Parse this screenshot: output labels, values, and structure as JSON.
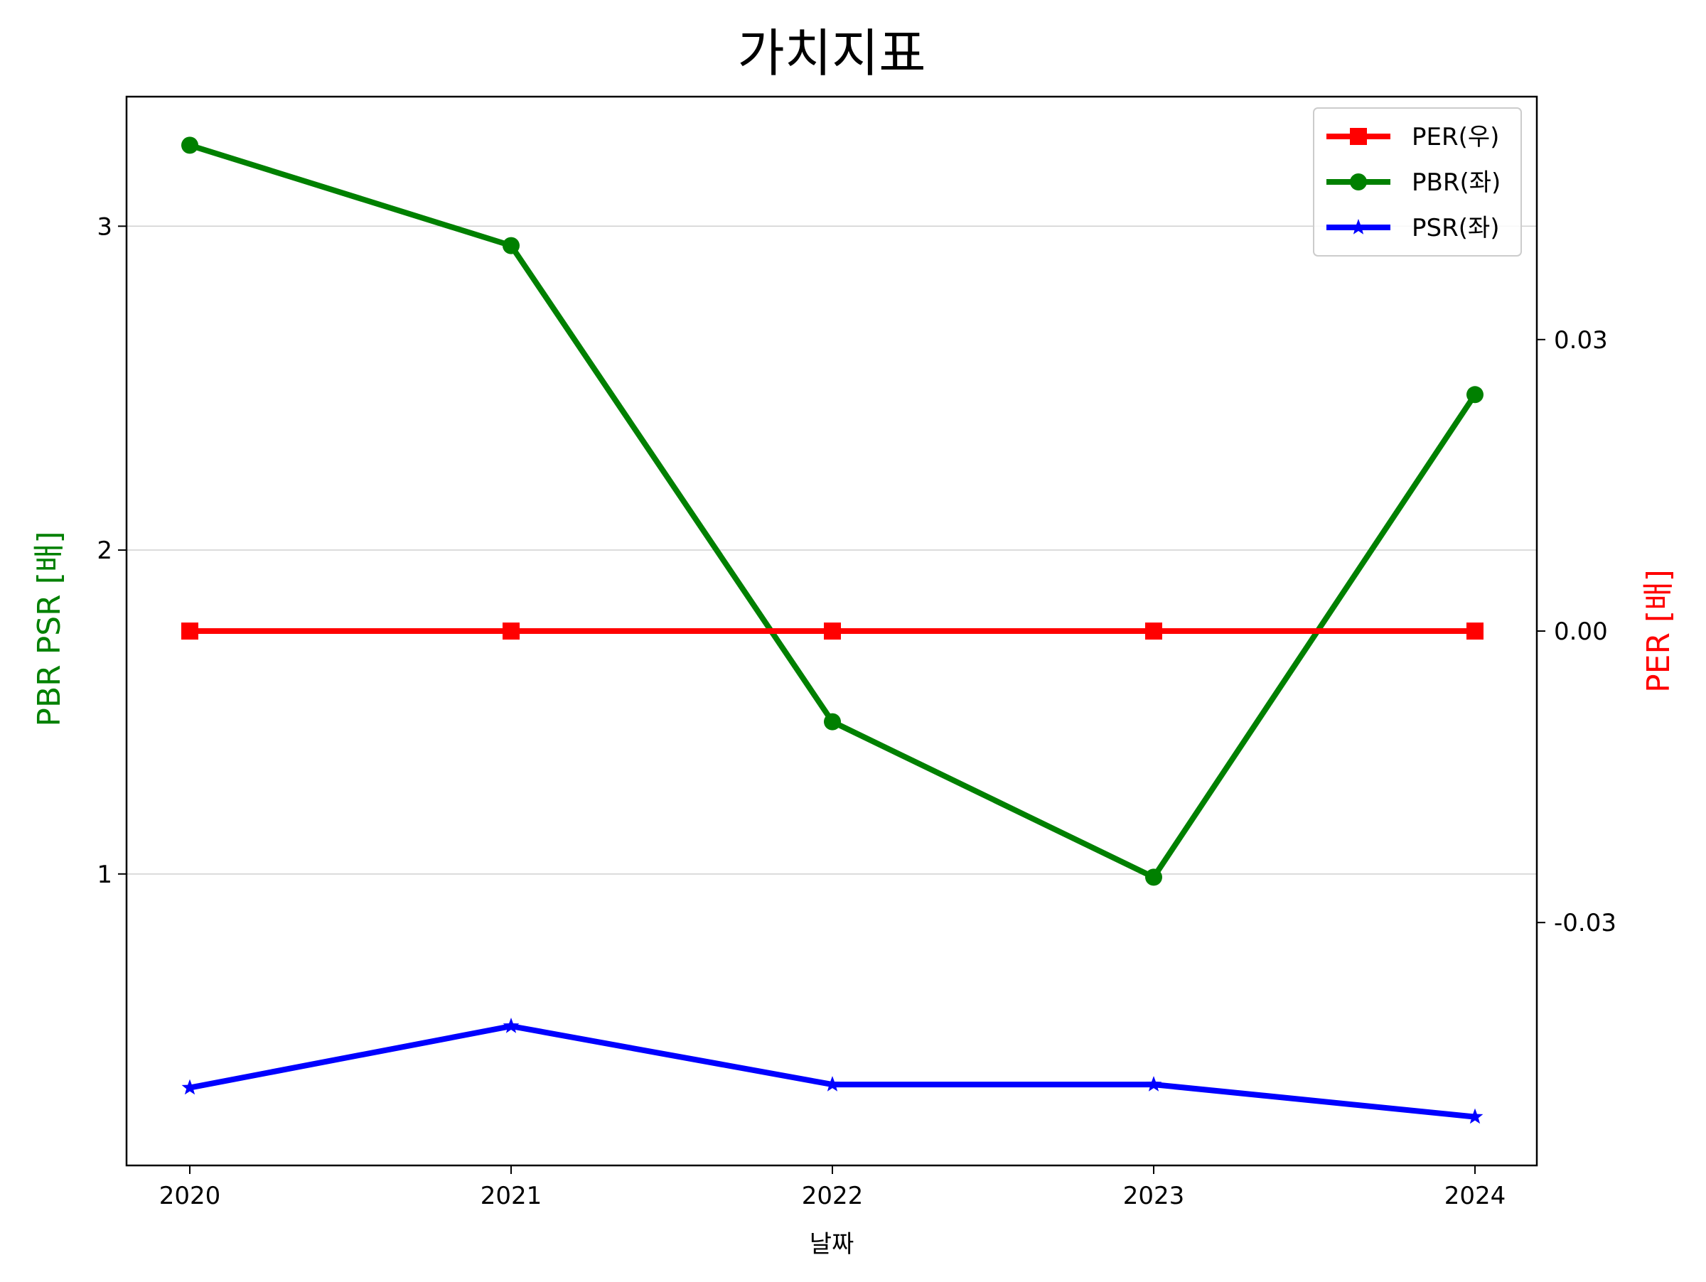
{
  "chart_data": {
    "type": "line",
    "title": "가치지표",
    "xlabel": "날짜",
    "ylabel_left": "PBR PSR [배]",
    "ylabel_right": "PER [배]",
    "categories": [
      "2020",
      "2021",
      "2022",
      "2023",
      "2024"
    ],
    "left_axis": {
      "ylim": [
        0.1,
        3.4
      ],
      "ticks": [
        1,
        2,
        3
      ],
      "tick_labels": [
        "1",
        "2",
        "3"
      ]
    },
    "right_axis": {
      "ylim": [
        -0.055,
        0.055
      ],
      "ticks": [
        0.03,
        0.0,
        -0.03
      ],
      "tick_labels": [
        "0.03",
        "0.00",
        "-0.03"
      ]
    },
    "grid": "horizontal (left axis)",
    "legend_position": "top-right",
    "series": [
      {
        "name": "PER(우)",
        "axis": "right",
        "color": "#ff0000",
        "marker": "square",
        "values": [
          0,
          0,
          0,
          0,
          0
        ]
      },
      {
        "name": "PBR(좌)",
        "axis": "left",
        "color": "#008000",
        "marker": "circle",
        "values": [
          3.25,
          2.94,
          1.47,
          0.99,
          2.48
        ]
      },
      {
        "name": "PSR(좌)",
        "axis": "left",
        "color": "#0000ff",
        "marker": "star",
        "values": [
          0.34,
          0.53,
          0.35,
          0.35,
          0.25
        ]
      }
    ]
  }
}
